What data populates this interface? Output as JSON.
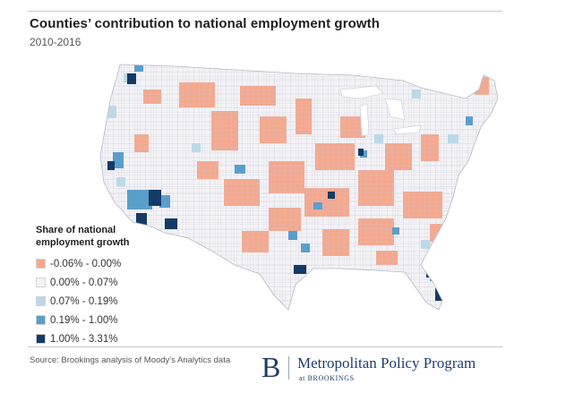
{
  "title": "Counties’ contribution to national employment growth",
  "subtitle": "2010-2016",
  "legend": {
    "title_line1": "Share of national",
    "title_line2": "employment growth",
    "items": [
      {
        "label": "-0.06% - 0.00%",
        "color": "#f4a98f"
      },
      {
        "label": "0.00% - 0.07%",
        "color": "#f3f3f7"
      },
      {
        "label": "0.07% - 0.19%",
        "color": "#bcd9e9"
      },
      {
        "label": "0.19% - 1.00%",
        "color": "#5b9ecb"
      },
      {
        "label": "1.00% - 3.31%",
        "color": "#143a66"
      }
    ]
  },
  "source": "Source: Brookings analysis of Moody's Analytics data",
  "logo": {
    "letter": "B",
    "name": "Metropolitan Policy Program",
    "sub": "at BROOKINGS"
  }
}
